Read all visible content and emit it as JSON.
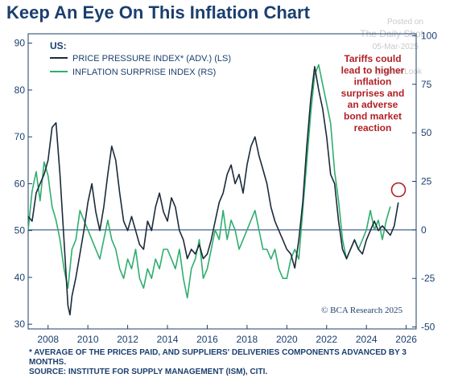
{
  "title": "Keep An Eye On This Inflation Chart",
  "watermark": {
    "posted": "Posted on",
    "site": "The Daily Shot",
    "date": "05-Mar-2025",
    "handle": "@SoberLook"
  },
  "legend": {
    "heading": "US:",
    "items": [
      {
        "label": "PRICE PRESSURE INDEX* (ADV.) (LS)",
        "color": "#1c2a3a"
      },
      {
        "label": "INFLATION SURPRISE INDEX (RS)",
        "color": "#2fae6e"
      }
    ]
  },
  "annotation": "Tariffs could lead to higher inflation surprises and an adverse bond market reaction",
  "source_badge": "© BCA Research 2025",
  "footnote": {
    "line1": "* AVERAGE OF THE PRICES PAID, AND SUPPLIERS' DELIVERIES COMPONENTS ADVANCED BY 3 MONTHS.",
    "line2": "SOURCE: INSTITUTE FOR SUPPLY MANAGEMENT (ISM), CITI."
  },
  "colors": {
    "axis": "#1b3f6e",
    "zero_line": "#1b3f6e",
    "annotation": "#b11f24",
    "price_line": "#1c2a3a",
    "surprise_line": "#2fae6e"
  },
  "chart_data": {
    "type": "line",
    "xlim": [
      2007,
      2026.5
    ],
    "x_ticks": [
      2008,
      2010,
      2012,
      2014,
      2016,
      2018,
      2020,
      2022,
      2024,
      2026
    ],
    "y_left": {
      "lim": [
        29,
        92
      ],
      "ticks": [
        30,
        40,
        50,
        60,
        70,
        80,
        90
      ]
    },
    "y_right": {
      "lim": [
        -51,
        101
      ],
      "ticks": [
        -50,
        -25,
        0,
        25,
        50,
        75,
        100
      ]
    },
    "grid": false,
    "legend_placement": "top-left",
    "series": [
      {
        "name": "PRICE PRESSURE INDEX* (ADV.) (LS)",
        "axis": "left",
        "x": [
          2007.0,
          2007.2,
          2007.4,
          2007.6,
          2007.8,
          2008.0,
          2008.2,
          2008.4,
          2008.6,
          2008.8,
          2009.0,
          2009.1,
          2009.2,
          2009.4,
          2009.6,
          2009.8,
          2010.0,
          2010.2,
          2010.4,
          2010.6,
          2010.8,
          2011.0,
          2011.2,
          2011.4,
          2011.6,
          2011.8,
          2012.0,
          2012.2,
          2012.4,
          2012.6,
          2012.8,
          2013.0,
          2013.2,
          2013.4,
          2013.6,
          2013.8,
          2014.0,
          2014.2,
          2014.4,
          2014.6,
          2014.8,
          2015.0,
          2015.2,
          2015.4,
          2015.6,
          2015.8,
          2016.0,
          2016.2,
          2016.4,
          2016.6,
          2016.8,
          2017.0,
          2017.2,
          2017.4,
          2017.6,
          2017.8,
          2018.0,
          2018.2,
          2018.4,
          2018.6,
          2018.8,
          2019.0,
          2019.2,
          2019.4,
          2019.6,
          2019.8,
          2020.0,
          2020.2,
          2020.4,
          2020.6,
          2020.8,
          2021.0,
          2021.2,
          2021.4,
          2021.6,
          2021.8,
          2022.0,
          2022.2,
          2022.4,
          2022.6,
          2022.8,
          2023.0,
          2023.2,
          2023.4,
          2023.6,
          2023.8,
          2024.0,
          2024.2,
          2024.4,
          2024.6,
          2024.8,
          2025.0,
          2025.2,
          2025.4,
          2025.6
        ],
        "values": [
          53,
          52,
          58,
          60,
          62,
          65,
          72,
          73,
          62,
          48,
          34,
          32,
          36,
          40,
          45,
          50,
          56,
          60,
          54,
          50,
          55,
          62,
          68,
          65,
          58,
          52,
          50,
          53,
          50,
          47,
          46,
          52,
          50,
          55,
          58,
          54,
          52,
          57,
          55,
          50,
          48,
          44,
          46,
          45,
          47,
          44,
          45,
          48,
          52,
          56,
          58,
          62,
          64,
          60,
          62,
          58,
          64,
          68,
          70,
          66,
          63,
          60,
          55,
          52,
          50,
          48,
          46,
          45,
          42,
          48,
          56,
          68,
          78,
          85,
          80,
          76,
          70,
          62,
          60,
          52,
          46,
          44,
          46,
          48,
          46,
          45,
          48,
          50,
          52,
          50,
          51,
          50,
          49,
          51,
          56
        ]
      },
      {
        "name": "INFLATION SURPRISE INDEX (RS)",
        "axis": "right",
        "x": [
          2007.0,
          2007.2,
          2007.4,
          2007.6,
          2007.8,
          2008.0,
          2008.2,
          2008.4,
          2008.6,
          2008.8,
          2009.0,
          2009.2,
          2009.4,
          2009.6,
          2009.8,
          2010.0,
          2010.2,
          2010.4,
          2010.6,
          2010.8,
          2011.0,
          2011.2,
          2011.4,
          2011.6,
          2011.8,
          2012.0,
          2012.2,
          2012.4,
          2012.6,
          2012.8,
          2013.0,
          2013.2,
          2013.4,
          2013.6,
          2013.8,
          2014.0,
          2014.2,
          2014.4,
          2014.6,
          2014.8,
          2015.0,
          2015.2,
          2015.4,
          2015.6,
          2015.8,
          2016.0,
          2016.2,
          2016.4,
          2016.6,
          2016.8,
          2017.0,
          2017.2,
          2017.4,
          2017.6,
          2017.8,
          2018.0,
          2018.2,
          2018.4,
          2018.6,
          2018.8,
          2019.0,
          2019.2,
          2019.4,
          2019.6,
          2019.8,
          2020.0,
          2020.2,
          2020.4,
          2020.6,
          2020.8,
          2021.0,
          2021.2,
          2021.4,
          2021.6,
          2021.8,
          2022.0,
          2022.2,
          2022.4,
          2022.6,
          2022.8,
          2023.0,
          2023.2,
          2023.4,
          2023.6,
          2023.8,
          2024.0,
          2024.2,
          2024.4,
          2024.6,
          2024.8,
          2025.0,
          2025.2
        ],
        "values": [
          0,
          20,
          30,
          15,
          35,
          28,
          12,
          5,
          -5,
          -20,
          -30,
          -10,
          -5,
          10,
          5,
          0,
          -5,
          -10,
          -15,
          -5,
          5,
          -5,
          -10,
          -20,
          -25,
          -15,
          -20,
          -10,
          -25,
          -30,
          -20,
          -25,
          -15,
          -20,
          -10,
          -10,
          -15,
          -20,
          -10,
          -25,
          -35,
          -20,
          -15,
          -5,
          -25,
          -20,
          -10,
          0,
          -5,
          10,
          -5,
          5,
          0,
          -10,
          -5,
          0,
          5,
          10,
          0,
          -10,
          -10,
          -15,
          -10,
          -20,
          -25,
          -25,
          -15,
          -10,
          -15,
          10,
          35,
          60,
          80,
          85,
          75,
          65,
          55,
          30,
          15,
          -5,
          -15,
          -10,
          -5,
          -10,
          -5,
          0,
          10,
          0,
          5,
          -5,
          5,
          12
        ]
      }
    ]
  }
}
